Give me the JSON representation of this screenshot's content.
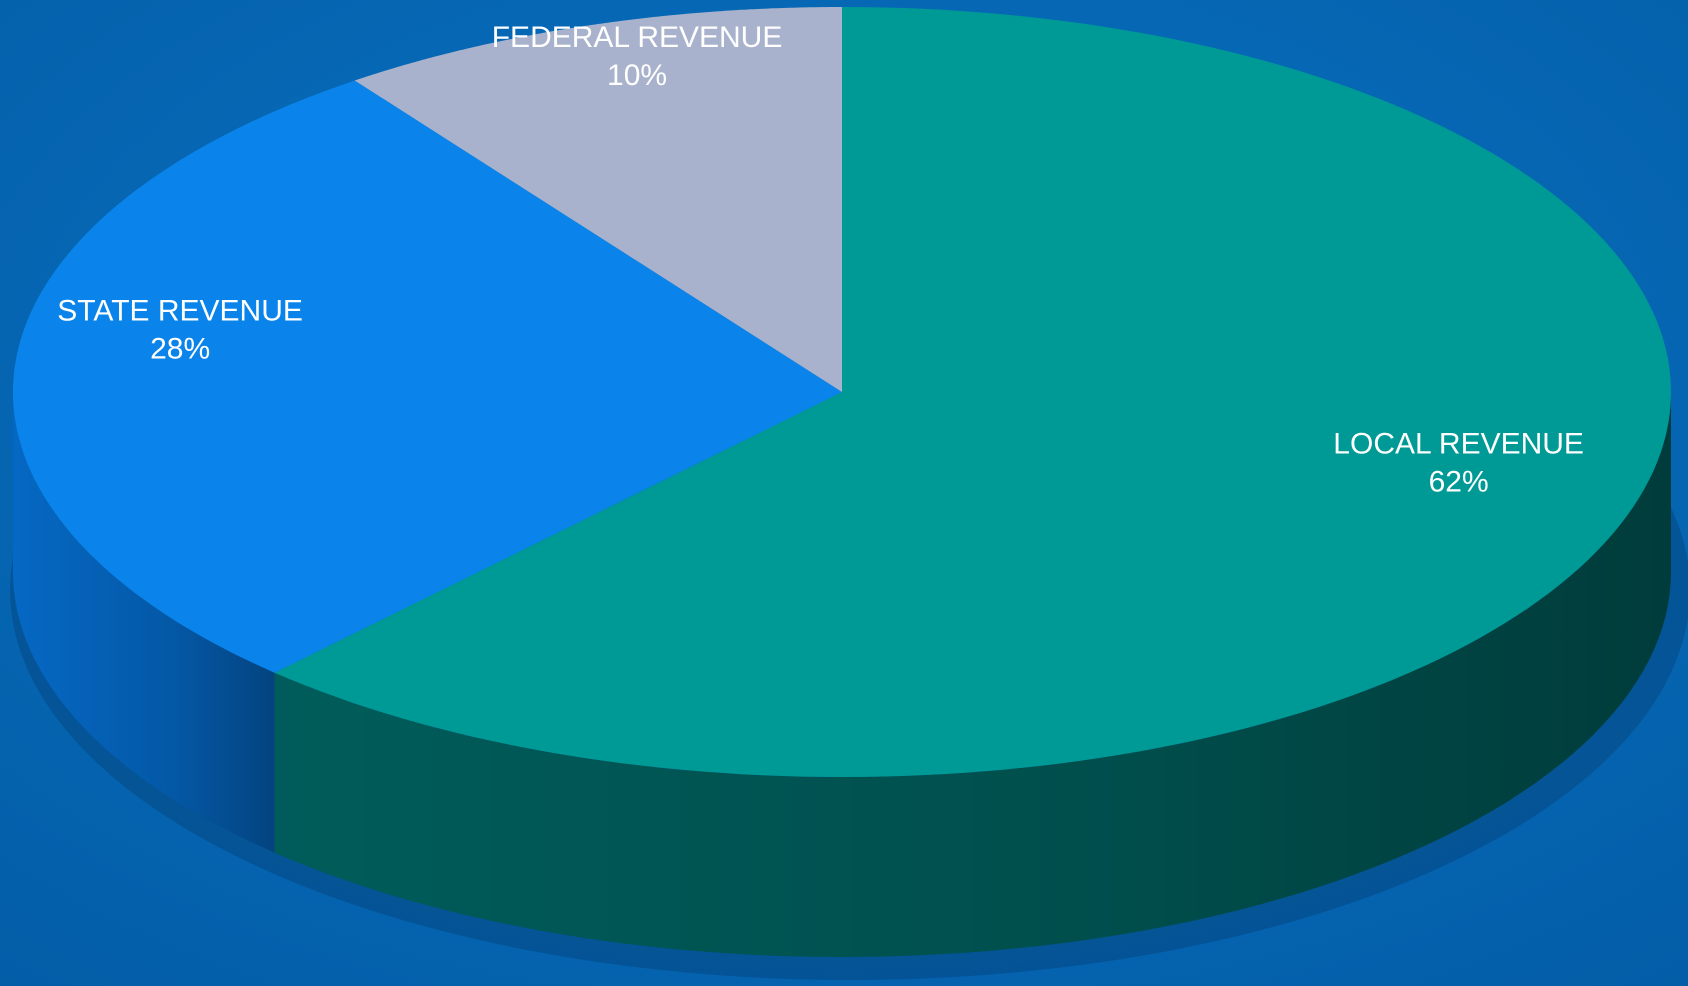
{
  "chart_data": {
    "type": "pie",
    "categories": [
      "LOCAL REVENUE",
      "STATE REVENUE",
      "FEDERAL REVENUE"
    ],
    "values": [
      62,
      28,
      10
    ],
    "value_labels": [
      "62%",
      "28%",
      "10%"
    ],
    "colors": [
      "#009a96",
      "#0a84ea",
      "#a9b2cc"
    ],
    "side_colors": [
      "#005c5a",
      "#0568c4",
      "#7d87a3"
    ]
  }
}
